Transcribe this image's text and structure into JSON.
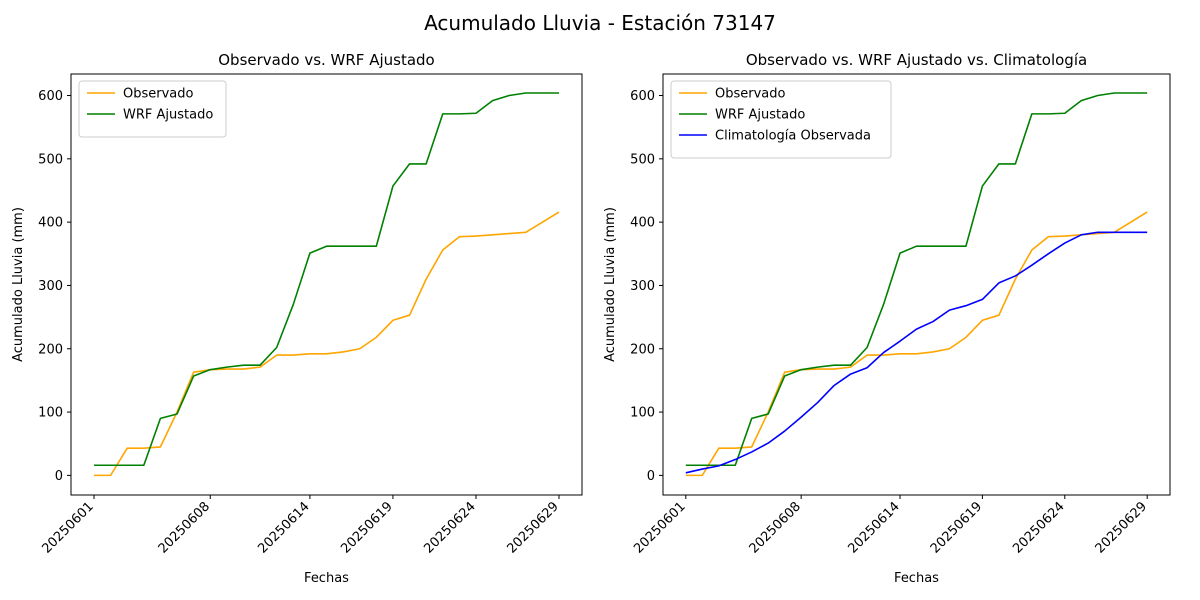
{
  "figure": {
    "title": "Acumulado Lluvia - Estación 73147"
  },
  "chart_data": [
    {
      "type": "line",
      "title": "Observado vs. WRF Ajustado",
      "xlabel": "Fechas",
      "ylabel": "Acumulado Lluvia (mm)",
      "x": [
        "20250601",
        "20250602",
        "20250603",
        "20250604",
        "20250605",
        "20250606",
        "20250607",
        "20250608",
        "20250609",
        "20250610",
        "20250611",
        "20250612",
        "20250613",
        "20250614",
        "20250615",
        "20250616",
        "20250617",
        "20250618",
        "20250619",
        "20250620",
        "20250621",
        "20250622",
        "20250623",
        "20250624",
        "20250625",
        "20250626",
        "20250627",
        "20250628",
        "20250629"
      ],
      "xtick_labels": [
        "20250601",
        "20250608",
        "20250614",
        "20250619",
        "20250624",
        "20250629"
      ],
      "yticks": [
        0,
        100,
        200,
        300,
        400,
        500,
        600
      ],
      "ylim": [
        -31,
        634
      ],
      "legend_position": "upper-left",
      "series": [
        {
          "name": "Observado",
          "color": "#ffa500",
          "values": [
            0,
            0,
            43,
            43,
            45,
            100,
            163,
            167,
            168,
            168,
            171,
            190,
            190,
            192,
            192,
            195,
            200,
            218,
            245,
            253,
            310,
            356,
            377,
            378,
            380,
            382,
            384,
            400,
            416
          ]
        },
        {
          "name": "WRF Ajustado",
          "color": "#008000",
          "values": [
            16,
            16,
            16,
            16,
            90,
            97,
            157,
            167,
            171,
            174,
            174,
            202,
            270,
            351,
            362,
            362,
            362,
            362,
            457,
            492,
            492,
            571,
            571,
            572,
            592,
            600,
            604,
            604,
            604
          ]
        }
      ]
    },
    {
      "type": "line",
      "title": "Observado vs. WRF Ajustado vs. Climatología",
      "xlabel": "Fechas",
      "ylabel": "Acumulado Lluvia (mm)",
      "x": [
        "20250601",
        "20250602",
        "20250603",
        "20250604",
        "20250605",
        "20250606",
        "20250607",
        "20250608",
        "20250609",
        "20250610",
        "20250611",
        "20250612",
        "20250613",
        "20250614",
        "20250615",
        "20250616",
        "20250617",
        "20250618",
        "20250619",
        "20250620",
        "20250621",
        "20250622",
        "20250623",
        "20250624",
        "20250625",
        "20250626",
        "20250627",
        "20250628",
        "20250629"
      ],
      "xtick_labels": [
        "20250601",
        "20250608",
        "20250614",
        "20250619",
        "20250624",
        "20250629"
      ],
      "yticks": [
        0,
        100,
        200,
        300,
        400,
        500,
        600
      ],
      "ylim": [
        -31,
        634
      ],
      "legend_position": "upper-left",
      "series": [
        {
          "name": "Observado",
          "color": "#ffa500",
          "values": [
            0,
            0,
            43,
            43,
            45,
            100,
            163,
            167,
            168,
            168,
            171,
            190,
            190,
            192,
            192,
            195,
            200,
            218,
            245,
            253,
            310,
            356,
            377,
            378,
            380,
            382,
            384,
            400,
            416
          ]
        },
        {
          "name": "WRF Ajustado",
          "color": "#008000",
          "values": [
            16,
            16,
            16,
            16,
            90,
            97,
            157,
            167,
            171,
            174,
            174,
            202,
            270,
            351,
            362,
            362,
            362,
            362,
            457,
            492,
            492,
            571,
            571,
            572,
            592,
            600,
            604,
            604,
            604
          ]
        },
        {
          "name": "Climatología Observada",
          "color": "#0000ff",
          "values": [
            4,
            10,
            15,
            25,
            37,
            51,
            70,
            92,
            115,
            142,
            160,
            170,
            194,
            212,
            231,
            243,
            261,
            268,
            278,
            304,
            315,
            332,
            350,
            367,
            380,
            384,
            384,
            384,
            384
          ]
        }
      ]
    }
  ]
}
